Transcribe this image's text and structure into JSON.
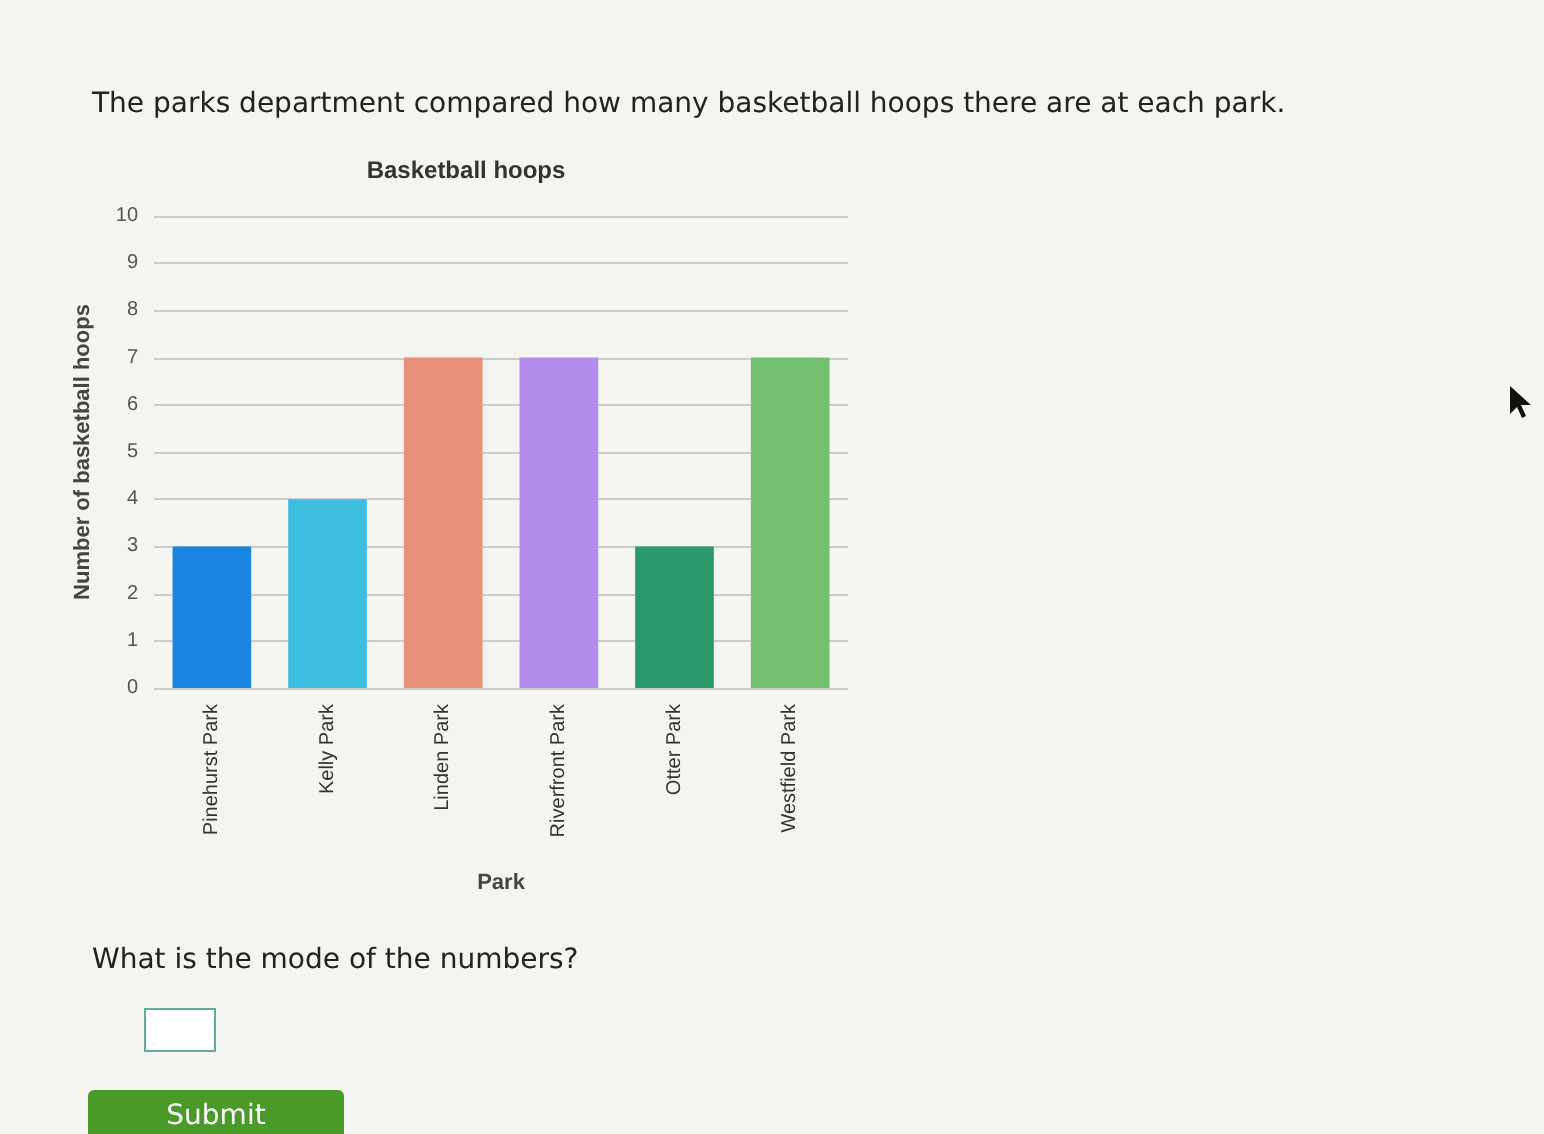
{
  "chart_data": {
    "type": "bar",
    "title": "Basketball hoops",
    "xlabel": "Park",
    "ylabel": "Number of basketball hoops",
    "annotations": [
      "The parks department compared how many basketball hoops there are at each park.",
      "What is the mode of the numbers?",
      "Submit"
    ],
    "categories": [
      "Pinehurst Park",
      "Kelly Park",
      "Linden Park",
      "Riverfront Park",
      "Otter Park",
      "Westfield Park"
    ],
    "values": [
      3,
      4,
      7,
      7,
      3,
      7
    ],
    "colors": [
      "#1a85e0",
      "#3dbde0",
      "#e8907a",
      "#b48cec",
      "#2a9a6a",
      "#72c070"
    ],
    "ylim": [
      0,
      10
    ],
    "yticks": [
      0,
      1,
      2,
      3,
      4,
      5,
      6,
      7,
      8,
      9,
      10
    ],
    "grid": "y"
  }
}
